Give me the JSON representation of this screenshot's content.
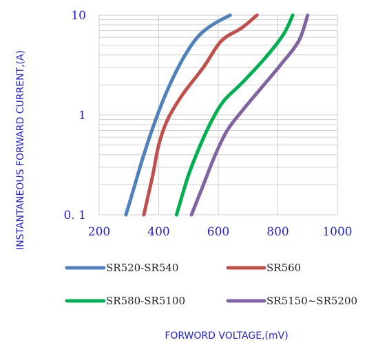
{
  "chart_data": {
    "type": "line",
    "x_axis": {
      "title": "FORWORD VOLTAGE,(mV)",
      "range": [
        200,
        1000
      ],
      "ticks": [
        200,
        400,
        600,
        800,
        1000
      ],
      "tick_labels": [
        "200",
        "400",
        "600",
        "800",
        "1000"
      ],
      "grid": true
    },
    "y_axis": {
      "title": "INSTANTANEOUS FORWARD CURRENT,(A)",
      "scale": "log",
      "range": [
        0.1,
        10
      ],
      "ticks": [
        0.1,
        1,
        10
      ],
      "tick_labels": [
        "0. 1",
        "1",
        "10"
      ],
      "grid": true
    },
    "legend_position": "bottom",
    "series": [
      {
        "name": "SR520-SR540",
        "color": "#4f81bd",
        "x": [
          290,
          320,
          350,
          390,
          430,
          480,
          530,
          580,
          640
        ],
        "y": [
          0.1,
          0.2,
          0.4,
          0.9,
          1.8,
          3.6,
          6.0,
          8.0,
          10.0
        ]
      },
      {
        "name": "SR560",
        "color": "#c0504d",
        "x": [
          350,
          380,
          400,
          430,
          480,
          550,
          610,
          680,
          730
        ],
        "y": [
          0.1,
          0.25,
          0.5,
          0.9,
          1.6,
          3.0,
          5.5,
          7.5,
          10.0
        ]
      },
      {
        "name": "SR580-SR5100",
        "color": "#00b050",
        "x": [
          460,
          500,
          540,
          580,
          620,
          680,
          760,
          820,
          850
        ],
        "y": [
          0.1,
          0.25,
          0.5,
          0.9,
          1.4,
          2.1,
          3.8,
          6.5,
          10.0
        ]
      },
      {
        "name": "SR5150~SR5200",
        "color": "#8064a2",
        "x": [
          510,
          550,
          590,
          630,
          680,
          740,
          810,
          870,
          900
        ],
        "y": [
          0.1,
          0.2,
          0.4,
          0.7,
          1.1,
          1.8,
          3.2,
          5.5,
          10.0
        ]
      }
    ]
  }
}
